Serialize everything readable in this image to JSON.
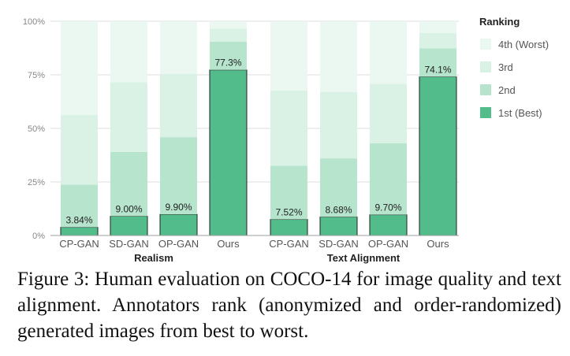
{
  "chart_data": {
    "type": "bar",
    "stacked": true,
    "categories": [
      "CP-GAN",
      "SD-GAN",
      "OP-GAN",
      "Ours"
    ],
    "groups": [
      "Realism",
      "Text Alignment"
    ],
    "series": [
      {
        "name": "1st (Best)",
        "color": "#52bd8a",
        "values": [
          [
            3.84,
            9.0,
            9.9,
            77.3
          ],
          [
            7.52,
            8.68,
            9.7,
            74.1
          ]
        ]
      },
      {
        "name": "2nd",
        "color": "#b6e4cd",
        "values": [
          [
            19.9,
            30.0,
            36.0,
            13.2
          ],
          [
            25.0,
            27.3,
            33.3,
            13.3
          ]
        ]
      },
      {
        "name": "3rd",
        "color": "#daf2e5",
        "values": [
          [
            32.5,
            32.5,
            29.6,
            6.0
          ],
          [
            35.2,
            31.0,
            27.8,
            7.2
          ]
        ]
      },
      {
        "name": "4th (Worst)",
        "color": "#ebf8f1",
        "values": [
          [
            43.76,
            28.5,
            24.5,
            3.5
          ],
          [
            32.28,
            33.02,
            29.2,
            5.4
          ]
        ]
      }
    ],
    "data_labels": [
      [
        "3.84%",
        "9.00%",
        "9.90%",
        "77.3%"
      ],
      [
        "7.52%",
        "8.68%",
        "9.70%",
        "74.1%"
      ]
    ],
    "yticks": [
      "0%",
      "25%",
      "50%",
      "75%",
      "100%"
    ],
    "ylim": [
      0,
      100
    ],
    "legend_title": "Ranking",
    "legend_position": "right",
    "grid": true
  },
  "caption": "Figure 3: Human evaluation on COCO-14 for image quality and text alignment. Annotators rank (anonymized and order-randomized) generated images from best to worst."
}
